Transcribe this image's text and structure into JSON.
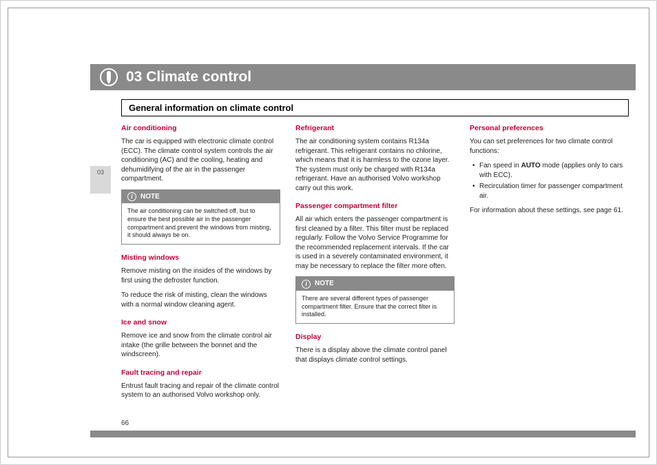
{
  "colors": {
    "header_bg": "#8a8a8a",
    "accent": "#c4003a",
    "tab_bg": "#d9d9d9",
    "text": "#222222",
    "page_bg": "#ffffff",
    "frame_border": "#999999"
  },
  "header": {
    "title": "03 Climate control",
    "icon": "thermometer-icon"
  },
  "subheader": "General information on climate control",
  "side_tab": "03",
  "page_number": "66",
  "col1": {
    "air_conditioning": {
      "heading": "Air conditioning",
      "body": "The car is equipped with electronic climate control (ECC). The climate control system controls the air conditioning (AC) and the cooling, heating and dehumidifying of the air in the passenger compartment."
    },
    "note1": {
      "label": "NOTE",
      "body": "The air conditioning can be switched off, but to ensure the best possible air in the passenger compartment and prevent the windows from misting, it should always be on."
    },
    "misting": {
      "heading": "Misting windows",
      "p1": "Remove misting on the insides of the windows by first using the defroster function.",
      "p2": "To reduce the risk of misting, clean the windows with a normal window cleaning agent."
    },
    "ice": {
      "heading": "Ice and snow",
      "body": "Remove ice and snow from the climate control air intake (the grille between the bonnet and the windscreen)."
    },
    "fault": {
      "heading": "Fault tracing and repair",
      "body": "Entrust fault tracing and repair of the climate control system to an authorised Volvo workshop only."
    }
  },
  "col2": {
    "refrigerant": {
      "heading": "Refrigerant",
      "body": "The air conditioning system contains R134a refrigerant. This refrigerant contains no chlorine, which means that it is harmless to the ozone layer. The system must only be charged with R134a refrigerant. Have an authorised Volvo workshop carry out this work."
    },
    "filter": {
      "heading": "Passenger compartment filter",
      "body": "All air which enters the passenger compartment is first cleaned by a filter. This filter must be replaced regularly. Follow the Volvo Service Programme for the recommended replacement intervals. If the car is used in a severely contaminated environment, it may be necessary to replace the filter more often."
    },
    "note2": {
      "label": "NOTE",
      "body": "There are several different types of passenger compartment filter. Ensure that the correct filter is installed."
    },
    "display": {
      "heading": "Display",
      "body": "There is a display above the climate control panel that displays climate control settings."
    }
  },
  "col3": {
    "prefs": {
      "heading": "Personal preferences",
      "intro": "You can set preferences for two climate control functions:",
      "bullets": [
        {
          "pre": "Fan speed in ",
          "bold": "AUTO",
          "post": " mode (applies only to cars with ECC)."
        },
        {
          "pre": "Recirculation timer for passenger compartment air.",
          "bold": "",
          "post": ""
        }
      ],
      "outro": "For information about these settings, see page 61."
    }
  }
}
